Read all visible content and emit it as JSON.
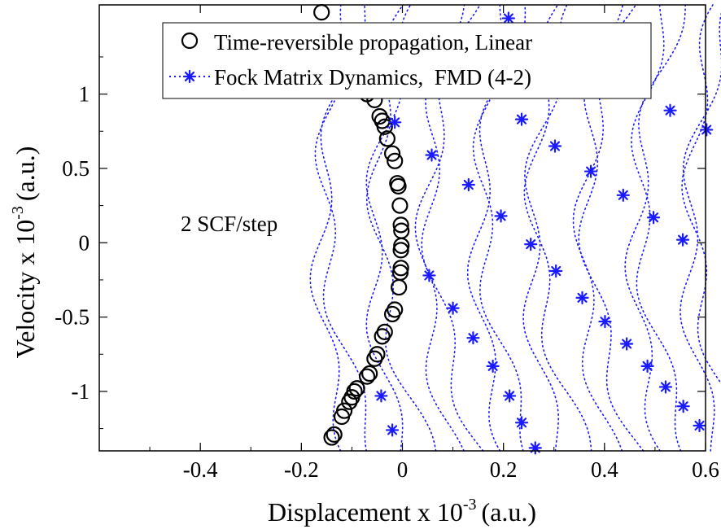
{
  "chart_data": {
    "type": "scatter",
    "xlabel": "Displacement x 10",
    "xlabel_exp": "-3",
    "xlabel_unit": "(a.u.)",
    "ylabel": "Velocity x 10",
    "ylabel_exp": "-3",
    "ylabel_unit": "(a.u.)",
    "xlim": [
      -0.6,
      0.6
    ],
    "ylim": [
      -1.4,
      1.6
    ],
    "x_ticks": [
      -0.4,
      -0.2,
      0,
      0.2,
      0.4,
      0.6
    ],
    "x_tick_labels": [
      "-0.4",
      "-0.2",
      "0",
      "0.2",
      "0.4",
      "0.6"
    ],
    "y_ticks": [
      -1,
      -0.5,
      0,
      0.5,
      1
    ],
    "y_tick_labels": [
      "-1",
      "-0.5",
      "0",
      "0.5",
      "1"
    ],
    "annotation": "2 SCF/step",
    "legend_position": "top-right",
    "series": [
      {
        "name": "Time-reversible propagation, Linear",
        "marker": "circle",
        "color": "#000000",
        "points": [
          [
            -0.16,
            1.55
          ],
          [
            -0.07,
            1.0
          ],
          [
            -0.055,
            0.96
          ],
          [
            -0.045,
            0.85
          ],
          [
            -0.04,
            0.82
          ],
          [
            -0.035,
            0.78
          ],
          [
            -0.03,
            0.7
          ],
          [
            -0.02,
            0.6
          ],
          [
            -0.015,
            0.55
          ],
          [
            -0.01,
            0.4
          ],
          [
            -0.008,
            0.38
          ],
          [
            -0.005,
            0.25
          ],
          [
            -0.003,
            0.12
          ],
          [
            -0.002,
            0.08
          ],
          [
            -0.002,
            -0.02
          ],
          [
            -0.003,
            -0.05
          ],
          [
            -0.003,
            -0.17
          ],
          [
            -0.004,
            -0.2
          ],
          [
            -0.007,
            -0.3
          ],
          [
            -0.015,
            -0.45
          ],
          [
            -0.02,
            -0.48
          ],
          [
            -0.035,
            -0.6
          ],
          [
            -0.04,
            -0.63
          ],
          [
            -0.05,
            -0.75
          ],
          [
            -0.055,
            -0.78
          ],
          [
            -0.065,
            -0.88
          ],
          [
            -0.07,
            -0.9
          ],
          [
            -0.09,
            -0.98
          ],
          [
            -0.095,
            -1.0
          ],
          [
            -0.1,
            -1.04
          ],
          [
            -0.105,
            -1.07
          ],
          [
            -0.115,
            -1.13
          ],
          [
            -0.12,
            -1.17
          ],
          [
            -0.135,
            -1.29
          ],
          [
            -0.14,
            -1.31
          ]
        ]
      },
      {
        "name": "Fock Matrix Dynamics,  FMD (4-2)",
        "marker": "asterisk",
        "color": "#1a1aff",
        "points": [
          [
            0.21,
            1.51
          ],
          [
            -0.015,
            0.81
          ],
          [
            0.058,
            0.59
          ],
          [
            0.131,
            0.39
          ],
          [
            0.195,
            0.18
          ],
          [
            0.254,
            -0.01
          ],
          [
            0.304,
            -0.19
          ],
          [
            0.356,
            -0.37
          ],
          [
            0.401,
            -0.53
          ],
          [
            0.444,
            -0.68
          ],
          [
            0.485,
            -0.83
          ],
          [
            0.521,
            -0.97
          ],
          [
            0.556,
            -1.1
          ],
          [
            0.588,
            -1.23
          ],
          [
            0.236,
            0.83
          ],
          [
            0.302,
            0.65
          ],
          [
            0.373,
            0.48
          ],
          [
            0.437,
            0.32
          ],
          [
            0.497,
            0.17
          ],
          [
            0.555,
            0.02
          ],
          [
            0.53,
            0.89
          ],
          [
            0.602,
            0.76
          ],
          [
            0.053,
            -0.22
          ],
          [
            0.1,
            -0.44
          ],
          [
            0.14,
            -0.64
          ],
          [
            0.179,
            -0.83
          ],
          [
            0.212,
            -1.03
          ],
          [
            0.236,
            -1.21
          ],
          [
            0.263,
            -1.38
          ],
          [
            -0.042,
            -1.03
          ],
          [
            -0.02,
            -1.26
          ]
        ]
      }
    ]
  }
}
